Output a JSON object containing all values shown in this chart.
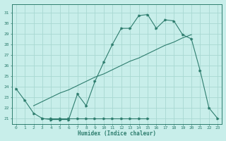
{
  "line1_x": [
    0,
    1,
    2,
    3,
    4,
    5,
    6,
    7,
    8,
    9,
    10,
    11,
    12,
    13,
    14,
    15,
    16,
    17,
    18,
    19,
    20,
    21,
    22,
    23
  ],
  "line1_y": [
    23.8,
    22.7,
    21.5,
    21.0,
    20.9,
    20.9,
    20.9,
    23.3,
    22.2,
    24.5,
    26.3,
    28.0,
    29.5,
    29.5,
    30.7,
    30.8,
    29.5,
    30.3,
    30.2,
    28.9,
    28.5,
    25.5,
    22.0,
    21.0
  ],
  "line_flat_x": [
    3,
    4,
    5,
    6,
    7,
    8,
    9,
    10,
    11,
    12,
    13,
    14,
    15
  ],
  "line_flat_y": [
    21.0,
    21.0,
    21.0,
    21.0,
    21.0,
    21.0,
    21.0,
    21.0,
    21.0,
    21.0,
    21.0,
    21.0,
    21.0
  ],
  "line_diag_x": [
    2,
    3,
    4,
    5,
    6,
    7,
    8,
    9,
    10,
    11,
    12,
    13,
    14,
    15,
    16,
    17,
    18,
    19,
    20
  ],
  "line_diag_y": [
    22.2,
    22.6,
    23.0,
    23.4,
    23.7,
    24.1,
    24.5,
    24.9,
    25.2,
    25.6,
    26.0,
    26.4,
    26.7,
    27.1,
    27.5,
    27.9,
    28.2,
    28.6,
    28.9
  ],
  "color": "#2e7d6e",
  "bg_color": "#c8eeea",
  "grid_color": "#a8d8d2",
  "ylabel_ticks": [
    21,
    22,
    23,
    24,
    25,
    26,
    27,
    28,
    29,
    30,
    31
  ],
  "xlabel_ticks": [
    0,
    1,
    2,
    3,
    4,
    5,
    6,
    7,
    8,
    9,
    10,
    11,
    12,
    13,
    14,
    15,
    16,
    17,
    18,
    19,
    20,
    21,
    22,
    23
  ],
  "xlabel": "Humidex (Indice chaleur)",
  "ylim": [
    20.5,
    31.8
  ],
  "xlim": [
    -0.5,
    23.5
  ],
  "figsize": [
    3.2,
    2.0
  ],
  "dpi": 100
}
